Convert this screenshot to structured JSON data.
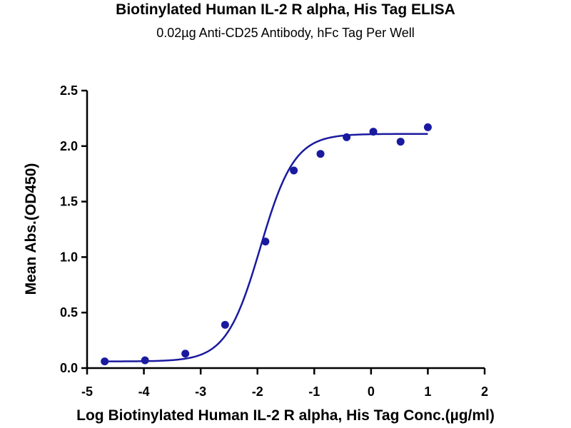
{
  "chart_data": {
    "type": "scatter",
    "title": "Biotinylated Human IL-2 R alpha, His Tag ELISA",
    "subtitle": "0.02µg Anti-CD25 Antibody, hFc Tag Per Well",
    "xlabel": "Log Biotinylated Human IL-2 R alpha, His Tag Conc.(µg/ml)",
    "ylabel": "Mean Abs.(OD450)",
    "xlim": [
      -5,
      2
    ],
    "ylim": [
      0,
      2.5
    ],
    "x_ticks": [
      "-5",
      "-4",
      "-3",
      "-2",
      "-1",
      "0",
      "1",
      "2"
    ],
    "y_ticks": [
      "0.0",
      "0.5",
      "1.0",
      "1.5",
      "2.0",
      "2.5"
    ],
    "grid": false,
    "legend": "none",
    "series": [
      {
        "color": "#1a1aa0",
        "x": [
          -4.69,
          -3.98,
          -3.27,
          -2.57,
          -1.86,
          -1.36,
          -0.89,
          -0.43,
          0.04,
          0.52,
          1.0
        ],
        "y": [
          0.06,
          0.07,
          0.13,
          0.39,
          1.14,
          1.78,
          1.93,
          2.08,
          2.13,
          2.04,
          2.17
        ]
      }
    ],
    "fit_curve": {
      "model": "4PL",
      "bottom": 0.06,
      "top": 2.11,
      "logEC50": -1.95,
      "hill": 1.45,
      "x_range": [
        -4.69,
        1.0
      ]
    }
  }
}
